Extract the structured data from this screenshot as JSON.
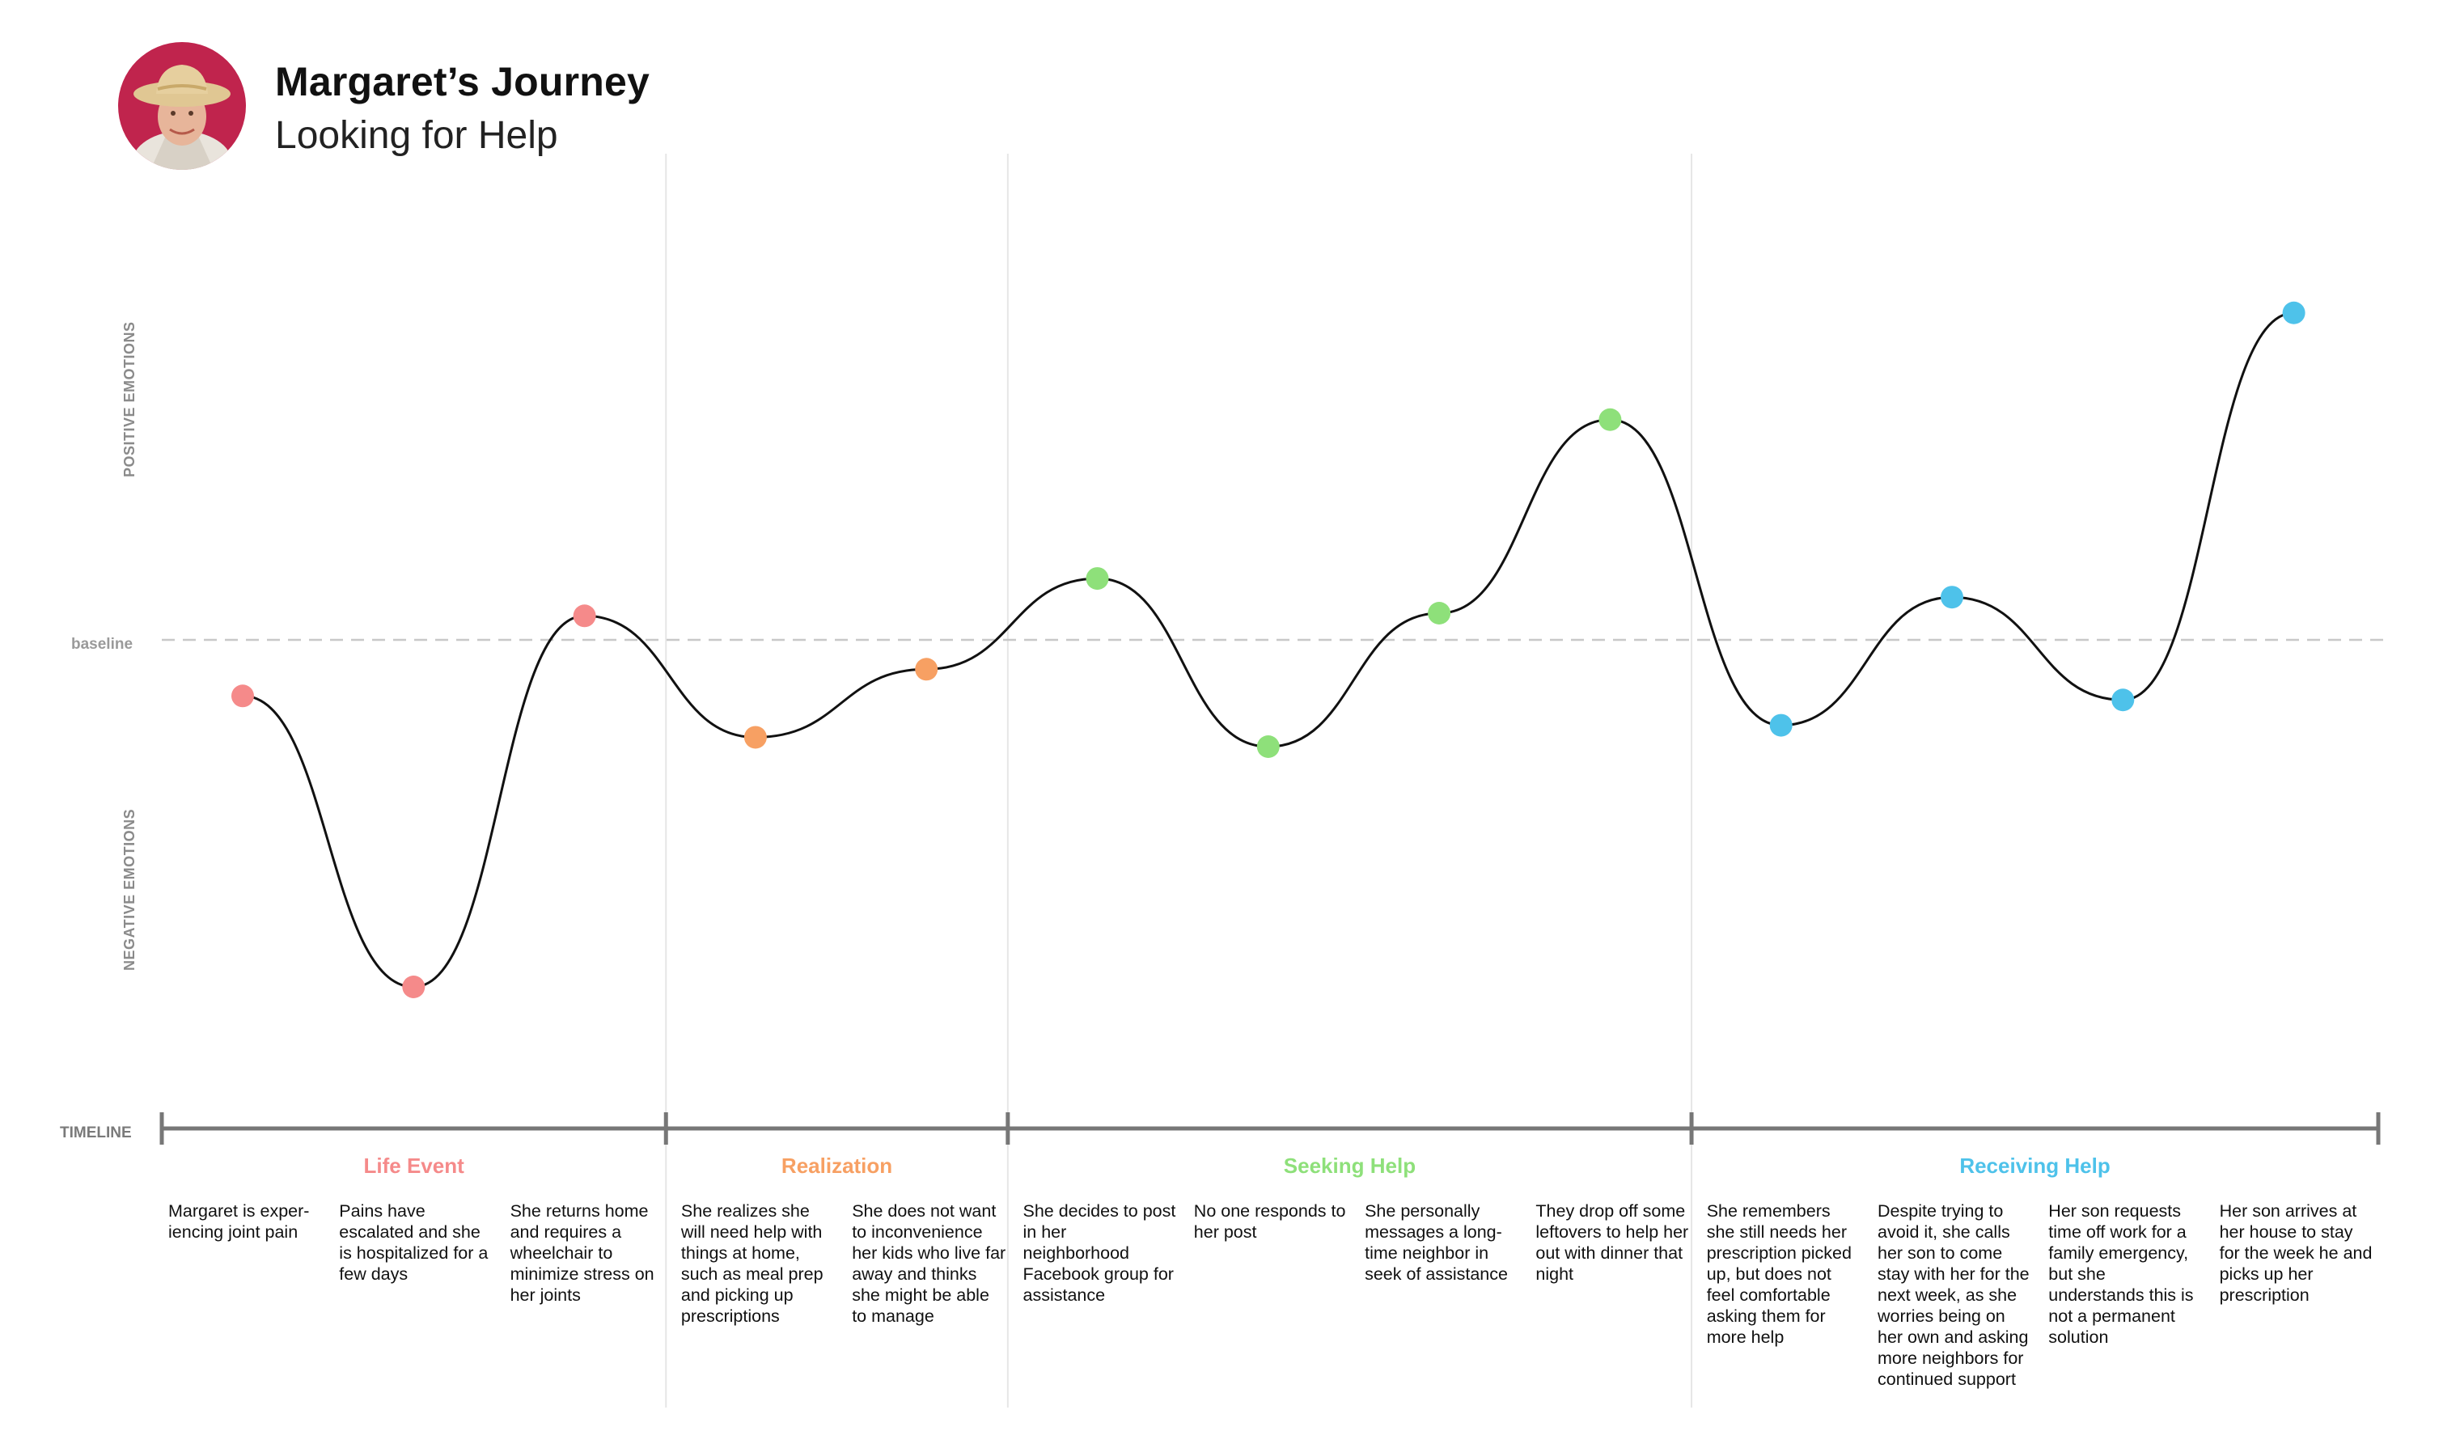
{
  "header": {
    "title": "Margaret’s Journey",
    "subtitle": "Looking for Help"
  },
  "axes": {
    "positive": "POSITIVE EMOTIONS",
    "negative": "NEGATIVE EMOTIONS",
    "baseline": "baseline",
    "timeline": "TIMELINE"
  },
  "colors": {
    "life_event": "#f58a8a",
    "realization": "#f7a063",
    "seeking_help": "#8ee07a",
    "receiving_help": "#4ec2ea",
    "curve": "#111111",
    "timeline": "#777777",
    "divider": "#e6e6e6",
    "baseline": "#c8c8c8"
  },
  "chart_data": {
    "type": "line",
    "x": [
      1,
      2,
      3,
      4,
      5,
      6,
      7,
      8,
      9,
      10,
      11,
      12,
      13
    ],
    "series": [
      {
        "values": [
          -0.42,
          -2.6,
          0.18,
          -0.73,
          -0.22,
          0.46,
          -0.8,
          0.2,
          1.65,
          -0.64,
          0.32,
          -0.45,
          2.45
        ]
      }
    ],
    "point_stages": [
      0,
      0,
      0,
      1,
      1,
      2,
      2,
      2,
      2,
      3,
      3,
      3,
      3
    ],
    "stages": [
      {
        "name": "Life Event",
        "color": "#f58a8a",
        "points": 3
      },
      {
        "name": "Realization",
        "color": "#f7a063",
        "points": 2
      },
      {
        "name": "Seeking Help",
        "color": "#8ee07a",
        "points": 4
      },
      {
        "name": "Receiving Help",
        "color": "#4ec2ea",
        "points": 4
      }
    ],
    "step_texts": [
      "Margaret is exper-\niencing  joint pain",
      "Pains have escalated and she is hospitalized for a few days",
      "She returns home and requires a wheelchair to minimize stress on her joints",
      "She realizes she will need help with things at home, such as meal prep and picking up prescriptions",
      "She does not want to inconvenience her kids who live far away and thinks she might be able to manage",
      "She decides to post in her neighborhood Facebook group for assistance",
      "No one responds to her post",
      "She personally messages a long-time neighbor in seek of assistance",
      "They drop off some leftovers to help her out with dinner that night",
      "She remembers she still needs her prescription picked up, but does not feel comfortable asking them for more help",
      "Despite trying to avoid it, she calls her son to come stay with her for the next week, as she worries being on her own and asking more neighbors for continued support",
      "Her son requests time off work for a family emergency, but she understands this is not a permanent solution",
      "Her son arrives at her house to stay for the week he and picks up her prescription"
    ],
    "ylabel_positive": "POSITIVE EMOTIONS",
    "ylabel_negative": "NEGATIVE EMOTIONS",
    "ylim": [
      -3,
      3
    ],
    "grid": false
  }
}
